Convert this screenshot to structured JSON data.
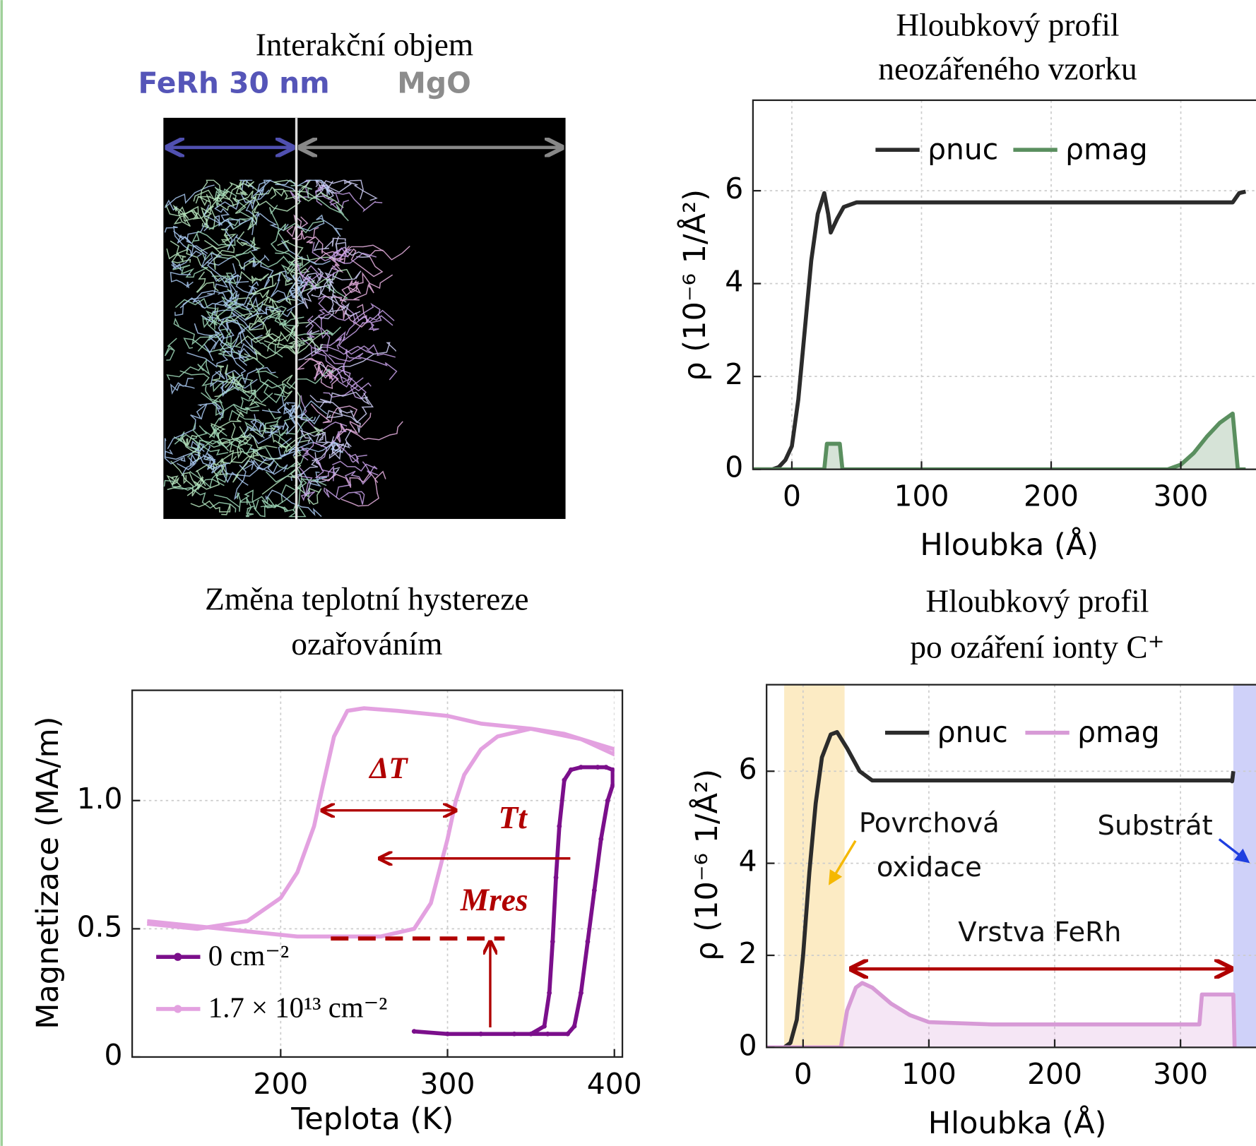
{
  "chart_data": [
    {
      "type": "image",
      "title": "Interakční objem",
      "labels": [
        {
          "text": "FeRh 30 nm",
          "color": "#5555b8"
        },
        {
          "text": "MgO",
          "color": "#8c8c8c"
        }
      ]
    },
    {
      "type": "line",
      "title": [
        "Hloubkový profil",
        "neozářeného vzorku"
      ],
      "x_label": "Hloubka (Å)",
      "y_label": "ρ (10⁻⁶ 1/Å²)",
      "xlim": [
        -30,
        358
      ],
      "ylim": [
        0,
        7.95
      ],
      "xticks": [
        0,
        100,
        200,
        300
      ],
      "yticks": [
        0,
        2,
        4,
        6
      ],
      "grid": true,
      "legend": "upper center",
      "series": [
        {
          "name": "ρnuc",
          "color": "#2b2b2b",
          "fill": false,
          "x": [
            -30,
            -15,
            -10,
            -5,
            0,
            5,
            10,
            15,
            20,
            25,
            28,
            30,
            35,
            40,
            50,
            100,
            200,
            340,
            345,
            350
          ],
          "values": [
            0,
            0,
            0.05,
            0.2,
            0.5,
            1.5,
            3,
            4.5,
            5.5,
            5.95,
            5.5,
            5.1,
            5.4,
            5.65,
            5.75,
            5.75,
            5.75,
            5.75,
            5.95,
            5.98
          ]
        },
        {
          "name": "ρmag",
          "color": "#5a8f5f",
          "fill": true,
          "x": [
            -30,
            25,
            27,
            37,
            39,
            290,
            300,
            310,
            320,
            330,
            340,
            342,
            344,
            350
          ],
          "values": [
            0,
            0,
            0.55,
            0.55,
            0,
            0,
            0.1,
            0.35,
            0.7,
            1,
            1.2,
            0.6,
            0,
            0
          ]
        }
      ]
    },
    {
      "type": "line",
      "title": [
        "Změna teplotní hystereze",
        "ozařováním"
      ],
      "x_label": "Teplota (K)",
      "y_label": "Magnetizace (MA/m)",
      "xlim": [
        111,
        400
      ],
      "ylim": [
        0,
        1.43
      ],
      "xticks": [
        200,
        300,
        400
      ],
      "yticks": [
        0,
        0.5,
        {
          "value": 1,
          "label": "1.0"
        }
      ],
      "grid": true,
      "legend": "lower left",
      "annotations": [
        "ΔT",
        "Tt",
        "Mres"
      ],
      "series": [
        {
          "name": "0 cm⁻²",
          "color": "#7b0f8b",
          "markers": true,
          "x": [
            280,
            300,
            320,
            340,
            360,
            372,
            376,
            380,
            384,
            388,
            392,
            396,
            399,
            399,
            395,
            390,
            380,
            374,
            370,
            367,
            365,
            363,
            361,
            358,
            350
          ],
          "values": [
            0.1,
            0.09,
            0.09,
            0.09,
            0.09,
            0.09,
            0.12,
            0.25,
            0.45,
            0.65,
            0.85,
            1.0,
            1.06,
            1.12,
            1.13,
            1.13,
            1.13,
            1.12,
            1.08,
            0.9,
            0.7,
            0.45,
            0.25,
            0.12,
            0.09
          ]
        },
        {
          "name": "1.7 × 10¹³ cm⁻²",
          "color": "#e3a1e0",
          "markers": false,
          "x": [
            120,
            150,
            180,
            210,
            230,
            260,
            280,
            290,
            300,
            305,
            310,
            320,
            330,
            350,
            370,
            390,
            400,
            400,
            380,
            350,
            320,
            300,
            270,
            250,
            240,
            232,
            225,
            220,
            210,
            200,
            180,
            150,
            120
          ],
          "values": [
            0.53,
            0.51,
            0.49,
            0.47,
            0.47,
            0.47,
            0.5,
            0.6,
            0.85,
            1.0,
            1.1,
            1.2,
            1.25,
            1.28,
            1.26,
            1.22,
            1.2,
            1.18,
            1.24,
            1.28,
            1.3,
            1.33,
            1.35,
            1.36,
            1.35,
            1.25,
            1.05,
            0.9,
            0.72,
            0.62,
            0.53,
            0.5,
            0.52
          ]
        }
      ]
    },
    {
      "type": "line",
      "title": [
        "Hloubkový profil",
        "po ozáření ionty C⁺"
      ],
      "x_label": "Hloubka (Å)",
      "y_label": "ρ (10⁻⁶ 1/Å²)",
      "xlim": [
        -29,
        360
      ],
      "ylim": [
        0,
        7.88
      ],
      "xticks": [
        0,
        100,
        200,
        300
      ],
      "yticks": [
        0,
        2,
        4,
        6
      ],
      "grid": true,
      "legend": "upper center",
      "annotations": [
        "Povrchová",
        "oxidace",
        "Substrát",
        "Vrstva FeRh"
      ],
      "bands": [
        {
          "x": [
            -15,
            33
          ],
          "color": "#fbe6b5"
        },
        {
          "x": [
            342,
            360
          ],
          "color": "#c3c6f7"
        }
      ],
      "series": [
        {
          "name": "ρnuc",
          "color": "#2b2b2b",
          "fill": false,
          "x": [
            -30,
            -15,
            -10,
            -5,
            0,
            5,
            10,
            15,
            22,
            27,
            35,
            45,
            55,
            100,
            200,
            340,
            341,
            342
          ],
          "values": [
            0,
            0,
            0.1,
            0.6,
            2,
            3.8,
            5.3,
            6.3,
            6.8,
            6.85,
            6.5,
            6,
            5.8,
            5.8,
            5.8,
            5.8,
            5.78,
            6
          ]
        },
        {
          "name": "ρmag",
          "color": "#d79ad6",
          "fill": true,
          "x": [
            -30,
            30,
            35,
            42,
            47,
            55,
            70,
            85,
            100,
            150,
            315,
            317,
            342,
            343
          ],
          "values": [
            0,
            0,
            0.8,
            1.3,
            1.4,
            1.3,
            0.95,
            0.7,
            0.55,
            0.5,
            0.5,
            1.15,
            1.15,
            0
          ]
        }
      ]
    }
  ]
}
